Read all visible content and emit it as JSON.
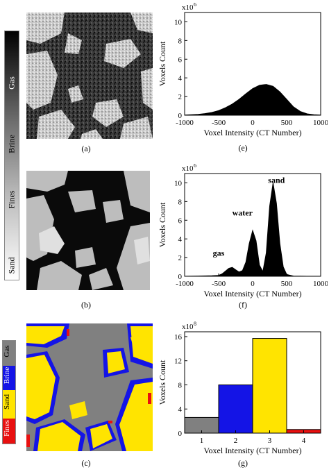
{
  "captions": [
    "(a)",
    "(b)",
    "(c)",
    "(e)",
    "(f)",
    "(g)"
  ],
  "grayscale_bar_labels": [
    "Gas",
    "Brine",
    "Fines",
    "Sand"
  ],
  "segmented_bar_labels": [
    {
      "text": "Gas",
      "color": "#808080"
    },
    {
      "text": "Brine",
      "color": "#1414e6"
    },
    {
      "text": "Sand",
      "color": "#ffe400"
    },
    {
      "text": "Fines",
      "color": "#e81010"
    }
  ],
  "colors": {
    "gas": "#808080",
    "brine": "#1414e6",
    "sand": "#ffe400",
    "fines": "#e81010"
  },
  "chart_data": [
    {
      "type": "area",
      "id": "e",
      "xlabel": "Voxel Intensity  (CT Number)",
      "ylabel": "Voxels Count",
      "y_multiplier": "x10",
      "y_exponent": "6",
      "xlim": [
        -1000,
        1000
      ],
      "ylim": [
        0,
        11
      ],
      "xticks": [
        -1000,
        -500,
        0,
        500,
        1000
      ],
      "yticks": [
        0,
        2,
        4,
        6,
        8,
        10
      ],
      "x": [
        -1000,
        -900,
        -800,
        -700,
        -600,
        -500,
        -400,
        -300,
        -200,
        -100,
        0,
        100,
        200,
        300,
        400,
        500,
        600,
        700,
        800,
        900,
        1000
      ],
      "y": [
        0.02,
        0.05,
        0.1,
        0.18,
        0.3,
        0.5,
        0.8,
        1.2,
        1.7,
        2.3,
        2.85,
        3.2,
        3.3,
        3.1,
        2.5,
        1.7,
        0.9,
        0.4,
        0.15,
        0.05,
        0.02
      ]
    },
    {
      "type": "area",
      "id": "f",
      "xlabel": "Voxel Intensity  (CT Number)",
      "ylabel": "Voxels Count",
      "y_multiplier": "x10",
      "y_exponent": "6",
      "xlim": [
        -1000,
        1000
      ],
      "ylim": [
        0,
        11
      ],
      "xticks": [
        -1000,
        -500,
        0,
        500,
        1000
      ],
      "yticks": [
        0,
        2,
        4,
        6,
        8,
        10
      ],
      "annotations": [
        {
          "text": "gas",
          "x": -500,
          "y": 2.2
        },
        {
          "text": "water",
          "x": -150,
          "y": 6.5
        },
        {
          "text": "sand",
          "x": 350,
          "y": 10.0
        }
      ],
      "x": [
        -1000,
        -800,
        -600,
        -500,
        -450,
        -400,
        -350,
        -300,
        -250,
        -200,
        -150,
        -100,
        -50,
        0,
        50,
        100,
        150,
        200,
        250,
        300,
        350,
        400,
        450,
        500,
        600,
        800,
        1000
      ],
      "y": [
        0,
        0.02,
        0.05,
        0.1,
        0.25,
        0.55,
        0.85,
        0.95,
        0.7,
        0.45,
        0.6,
        1.5,
        3.5,
        4.9,
        3.8,
        1.2,
        0.5,
        2.5,
        7.5,
        10.0,
        7.8,
        3.5,
        1.0,
        0.2,
        0.02,
        0,
        0
      ]
    },
    {
      "type": "bar",
      "id": "g",
      "xlabel": "Voxel Intensity  (CT Number)",
      "ylabel": "Voxels Count",
      "y_multiplier": "x10",
      "y_exponent": "8",
      "categories": [
        "1",
        "2",
        "3",
        "4"
      ],
      "values": [
        2.6,
        8.0,
        15.7,
        0.6
      ],
      "bar_colors": [
        "#808080",
        "#1414e6",
        "#ffe400",
        "#e81010"
      ],
      "ylim": [
        0,
        16.8
      ],
      "yticks": [
        0,
        4,
        8,
        12,
        16
      ]
    }
  ]
}
